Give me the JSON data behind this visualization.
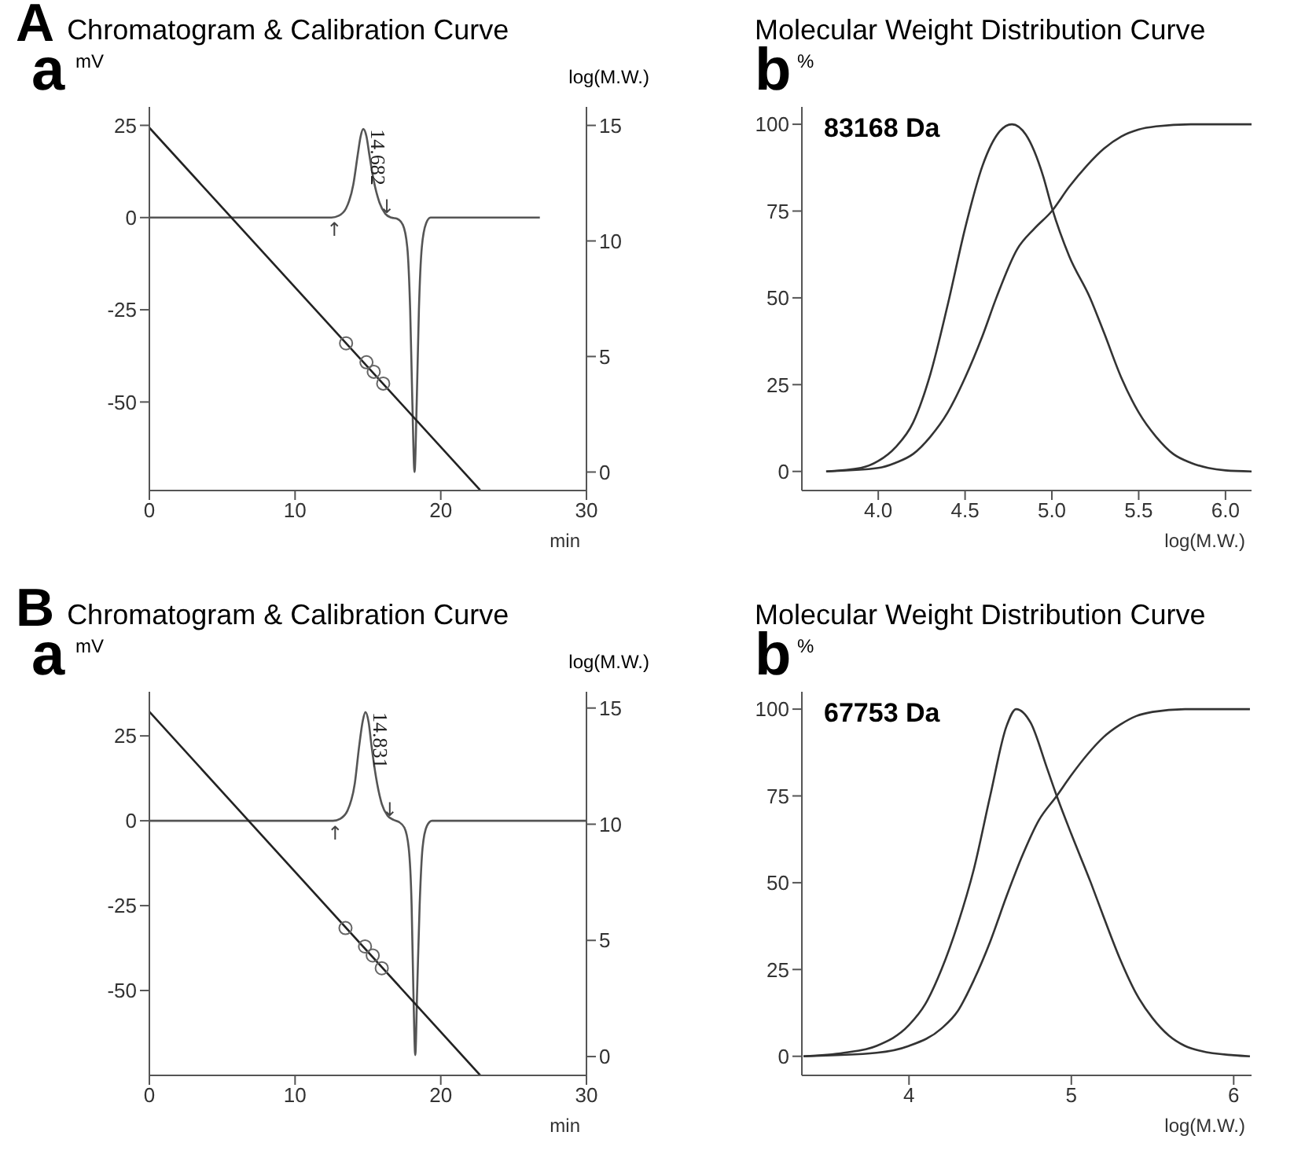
{
  "chart_data": [
    {
      "type": "line",
      "title": "Chromatogram & Calibration Curve",
      "annotations": [
        "A",
        "a",
        {
          "text": "14.682",
          "x": 14.68,
          "y": 24
        },
        {
          "text": "↑",
          "x": 12.7,
          "y": 0
        },
        {
          "text": "↓",
          "x": 16.3,
          "y": 0
        }
      ],
      "ylabel": "mV",
      "y2label": "log(M.W.)",
      "xlabel": "min",
      "xlim": [
        0,
        30
      ],
      "xticks": [
        0,
        10,
        20,
        30
      ],
      "ylim": [
        -74,
        30
      ],
      "yticks": [
        -50,
        -25,
        0,
        25
      ],
      "y2lim": [
        -0.8,
        15.8
      ],
      "y2ticks": [
        0,
        5,
        10,
        15
      ],
      "series": [
        {
          "color": "#555555",
          "marker": "none",
          "x": [
            0,
            12.5,
            13.0,
            13.5,
            14.0,
            14.3,
            14.5,
            14.68,
            14.9,
            15.1,
            15.4,
            15.8,
            16.2,
            16.6,
            17.0,
            17.4,
            17.7,
            17.9,
            18.05,
            18.2,
            18.35,
            18.5,
            18.7,
            19.0,
            19.3,
            26.8
          ],
          "values": [
            0,
            0,
            0.5,
            2.5,
            9,
            17,
            22,
            24,
            22,
            17,
            10,
            4,
            1,
            0,
            -0.3,
            -2,
            -8,
            -25,
            -50,
            -69,
            -50,
            -25,
            -8,
            -1.5,
            0,
            0
          ]
        },
        {
          "color": "#222222",
          "marker": "none",
          "axis": "y2",
          "x": [
            0,
            22.7
          ],
          "values": [
            14.9,
            -0.78
          ]
        },
        {
          "type": "scatter",
          "color": "#666666",
          "marker": "circle",
          "axis": "y2",
          "x": [
            13.5,
            14.9,
            15.4,
            16.05
          ],
          "values": [
            5.57,
            4.75,
            4.34,
            3.83
          ]
        }
      ]
    },
    {
      "type": "line",
      "title": "Molecular Weight Distribution Curve",
      "subtitle": "83168 Da",
      "annotations": [
        "b"
      ],
      "ylabel": "%",
      "xlabel": "log(M.W.)",
      "xlim": [
        3.56,
        6.15
      ],
      "xticks": [
        {
          "value": 4,
          "label": "4.0"
        },
        {
          "value": 4.5,
          "label": "4.5"
        },
        {
          "value": 5,
          "label": "5.0"
        },
        {
          "value": 5.5,
          "label": "5.5"
        },
        {
          "value": 6,
          "label": "6.0"
        }
      ],
      "ylim": [
        -5.5,
        105
      ],
      "yticks": [
        0,
        25,
        50,
        75,
        100
      ],
      "series": [
        {
          "color": "#333333",
          "marker": "none",
          "x": [
            3.7,
            3.9,
            4.0,
            4.1,
            4.2,
            4.3,
            4.4,
            4.5,
            4.6,
            4.7,
            4.77,
            4.85,
            4.95,
            5.0,
            5.1,
            5.22,
            5.3,
            5.4,
            5.5,
            5.6,
            5.7,
            5.8,
            5.9,
            6.0,
            6.15
          ],
          "values": [
            0,
            1,
            3,
            7,
            14,
            28,
            48,
            70,
            88,
            98,
            100,
            97,
            85,
            76,
            62,
            50,
            40,
            27,
            17,
            10,
            5,
            2.5,
            1,
            0.3,
            0
          ]
        },
        {
          "color": "#333333",
          "marker": "none",
          "x": [
            3.7,
            4.0,
            4.1,
            4.2,
            4.3,
            4.4,
            4.5,
            4.6,
            4.68,
            4.8,
            4.9,
            5.0,
            5.1,
            5.2,
            5.3,
            5.4,
            5.5,
            5.6,
            5.8,
            6.15
          ],
          "values": [
            0,
            1,
            2.5,
            5,
            10,
            17,
            27,
            39,
            50,
            64,
            70,
            75,
            82,
            88,
            93,
            96.5,
            98.5,
            99.4,
            100,
            100
          ]
        }
      ]
    },
    {
      "type": "line",
      "title": "Chromatogram & Calibration Curve",
      "annotations": [
        "B",
        "a",
        {
          "text": "14.831",
          "x": 14.83,
          "y": 32
        },
        {
          "text": "↑",
          "x": 12.75,
          "y": 0
        },
        {
          "text": "↓",
          "x": 16.5,
          "y": 0
        }
      ],
      "ylabel": "mV",
      "y2label": "log(M.W.)",
      "xlabel": "min",
      "xlim": [
        0,
        30
      ],
      "xticks": [
        0,
        10,
        20,
        30
      ],
      "ylim": [
        -75,
        38
      ],
      "yticks": [
        -50,
        -25,
        0,
        25
      ],
      "y2lim": [
        -0.81,
        15.7
      ],
      "y2ticks": [
        0,
        5,
        10,
        15
      ],
      "series": [
        {
          "color": "#555555",
          "marker": "none",
          "x": [
            0,
            12.6,
            13.1,
            13.6,
            14.1,
            14.4,
            14.65,
            14.83,
            15.05,
            15.25,
            15.55,
            15.95,
            16.35,
            16.75,
            17.1,
            17.5,
            17.8,
            18.0,
            18.12,
            18.25,
            18.38,
            18.55,
            18.75,
            19.05,
            19.4,
            30
          ],
          "values": [
            0,
            0,
            0.6,
            3,
            11,
            22,
            29.5,
            32,
            29,
            22,
            13,
            5,
            1.5,
            0.3,
            -0.3,
            -2,
            -8,
            -25,
            -50,
            -69,
            -50,
            -25,
            -8,
            -1.5,
            0,
            0
          ]
        },
        {
          "color": "#222222",
          "marker": "none",
          "axis": "y2",
          "x": [
            0,
            22.7
          ],
          "values": [
            14.84,
            -0.8
          ]
        },
        {
          "type": "scatter",
          "color": "#666666",
          "marker": "circle",
          "axis": "y2",
          "x": [
            13.46,
            14.8,
            15.33,
            15.95
          ],
          "values": [
            5.53,
            4.74,
            4.35,
            3.8
          ]
        }
      ]
    },
    {
      "type": "line",
      "title": "Molecular Weight Distribution Curve",
      "subtitle": "67753 Da",
      "annotations": [
        "b"
      ],
      "ylabel": "%",
      "xlabel": "log(M.W.)",
      "xlim": [
        3.34,
        6.11
      ],
      "xticks": [
        4,
        5,
        6
      ],
      "ylim": [
        -5.5,
        105
      ],
      "yticks": [
        0,
        25,
        50,
        75,
        100
      ],
      "series": [
        {
          "color": "#333333",
          "marker": "none",
          "x": [
            3.35,
            3.6,
            3.8,
            4.0,
            4.1,
            4.2,
            4.3,
            4.4,
            4.5,
            4.6,
            4.66,
            4.75,
            4.85,
            4.91,
            5.0,
            5.12,
            5.2,
            5.3,
            5.4,
            5.5,
            5.6,
            5.7,
            5.8,
            6.0,
            6.1
          ],
          "values": [
            0,
            1,
            3,
            9,
            15,
            25,
            38,
            54,
            75,
            95,
            100,
            96,
            83,
            75,
            64,
            50,
            40,
            28,
            18,
            11,
            6,
            3,
            1.5,
            0.3,
            0
          ]
        },
        {
          "color": "#333333",
          "marker": "none",
          "x": [
            3.35,
            3.8,
            4.0,
            4.2,
            4.3,
            4.4,
            4.5,
            4.6,
            4.7,
            4.8,
            4.91,
            5.0,
            5.1,
            5.2,
            5.3,
            5.4,
            5.5,
            5.7,
            6.1
          ],
          "values": [
            0,
            1,
            3,
            8,
            13,
            22,
            33,
            46,
            58,
            68,
            75,
            81,
            87,
            92,
            95.5,
            98,
            99.2,
            100,
            100
          ]
        }
      ]
    }
  ]
}
